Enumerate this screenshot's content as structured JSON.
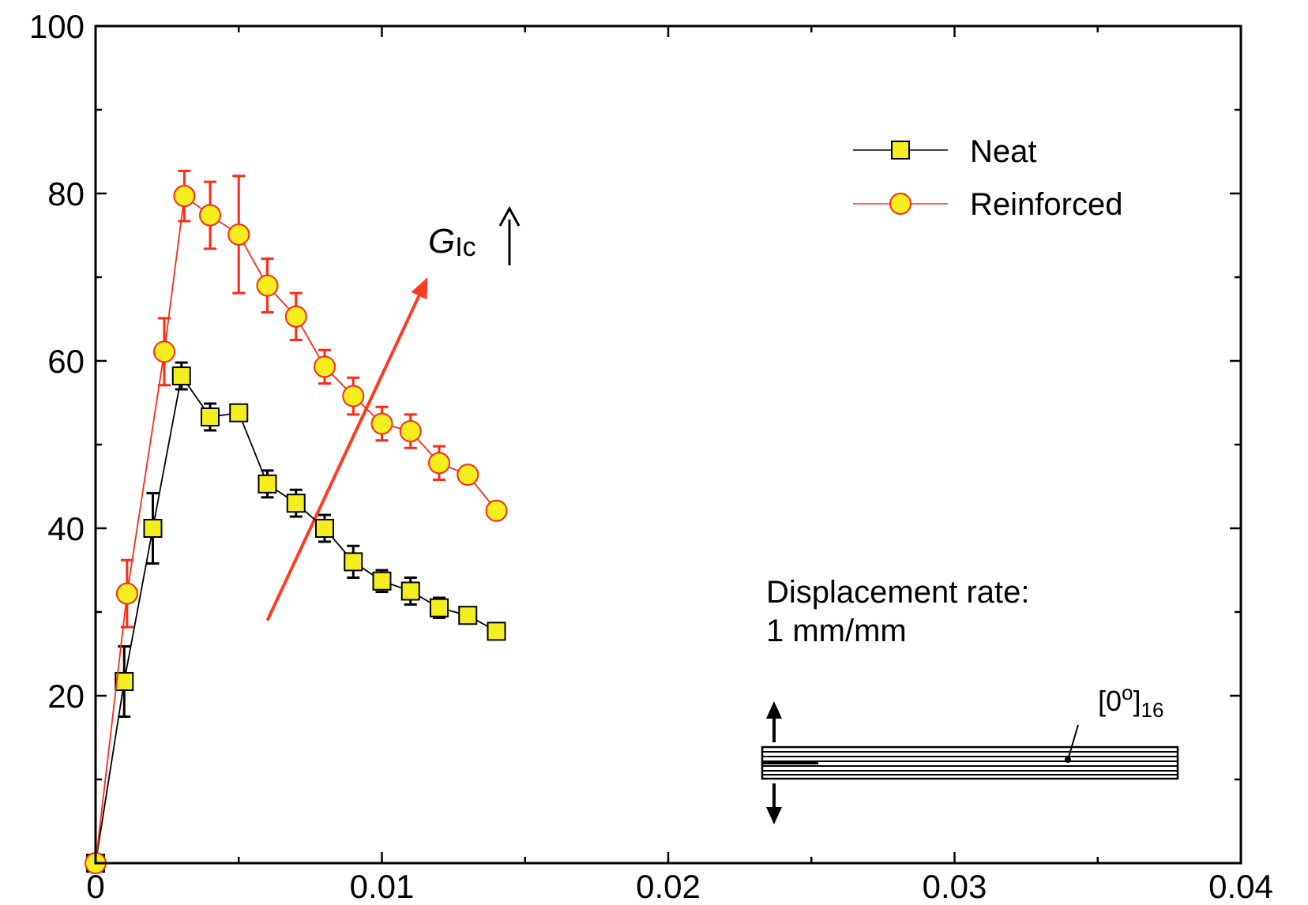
{
  "chart_data": {
    "type": "line",
    "xlim": [
      0,
      0.04
    ],
    "ylim": [
      0,
      100
    ],
    "x_ticks": [
      {
        "value": 0,
        "label": "0"
      },
      {
        "value": 0.01,
        "label": "0.01"
      },
      {
        "value": 0.02,
        "label": "0.02"
      },
      {
        "value": 0.03,
        "label": "0.03"
      },
      {
        "value": 0.04,
        "label": "0.04"
      }
    ],
    "y_ticks": [
      {
        "value": 20,
        "label": "20"
      },
      {
        "value": 40,
        "label": "40"
      },
      {
        "value": 60,
        "label": "60"
      },
      {
        "value": 80,
        "label": "80"
      },
      {
        "value": 100,
        "label": "100"
      }
    ],
    "legend_position": "top-right",
    "series": [
      {
        "name": "Neat",
        "marker": "square",
        "line_color": "#000000",
        "marker_fill": "#f5ee1e",
        "marker_stroke": "#000000",
        "error_color": "#000000",
        "x": [
          0,
          0.001,
          0.002,
          0.003,
          0.004,
          0.005,
          0.006,
          0.007,
          0.008,
          0.009,
          0.01,
          0.011,
          0.012,
          0.013,
          0.014
        ],
        "y": [
          0,
          21.7,
          40.0,
          58.2,
          53.3,
          53.8,
          45.3,
          43.0,
          40.0,
          36.0,
          33.7,
          32.5,
          30.5,
          29.6,
          27.7
        ],
        "err": [
          0,
          4.2,
          4.2,
          1.6,
          1.6,
          0.8,
          1.6,
          1.6,
          1.6,
          1.9,
          1.3,
          1.6,
          1.2,
          0.9,
          0.8
        ]
      },
      {
        "name": "Reinforced",
        "marker": "circle",
        "line_color": "#ff2a14",
        "marker_fill": "#f5ee1e",
        "marker_stroke": "#ff2a14",
        "error_color": "#ff2a14",
        "x": [
          0,
          0.0011,
          0.0024,
          0.0031,
          0.004,
          0.005,
          0.006,
          0.007,
          0.008,
          0.009,
          0.01,
          0.011,
          0.012,
          0.013,
          0.014
        ],
        "y": [
          0,
          32.2,
          61.1,
          79.7,
          77.4,
          75.1,
          69.0,
          65.3,
          59.3,
          55.8,
          52.5,
          51.6,
          47.8,
          46.4,
          42.1
        ],
        "err": [
          0,
          4.0,
          4.0,
          3.0,
          4.0,
          7.0,
          3.2,
          2.8,
          2.0,
          2.2,
          2.0,
          2.0,
          2.0,
          1.0,
          1.0
        ]
      }
    ],
    "annotations": {
      "gic_symbol": "G",
      "gic_subscript": "Ic",
      "gic_arrow": "↑",
      "rate_line1": "Displacement rate:",
      "rate_line2": "1 mm/mm",
      "layup_main": "[0",
      "layup_sup": "o",
      "layup_close": "]",
      "layup_sub": "16"
    },
    "colors": {
      "trend_arrow": "#ff3b1f",
      "axis": "#000000"
    }
  }
}
